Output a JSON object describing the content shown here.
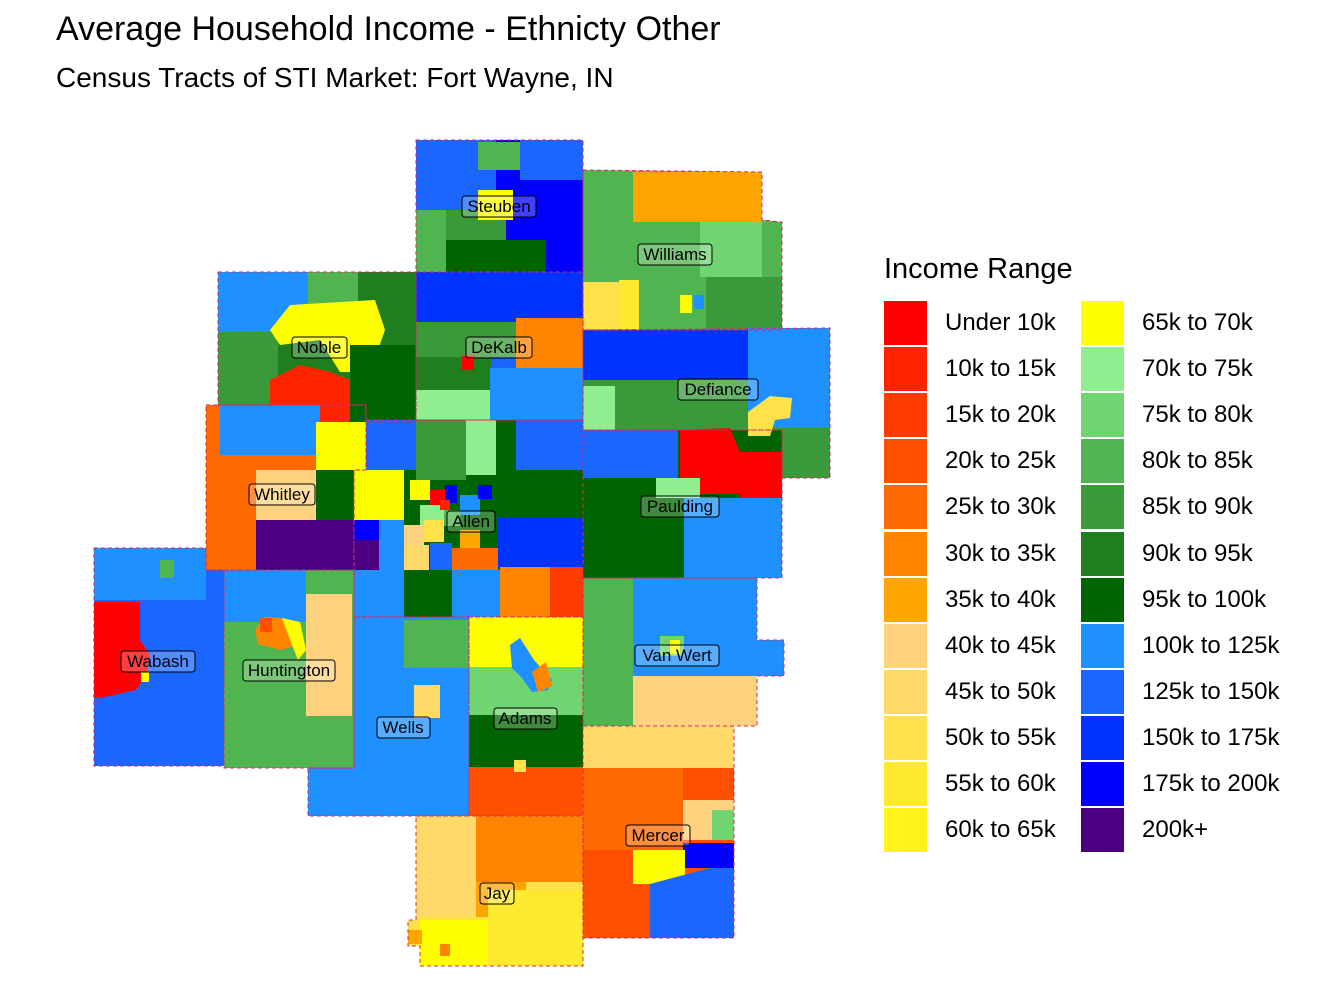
{
  "title": "Average Household Income - Ethnicty Other",
  "subtitle": "Census Tracts of STI Market: Fort Wayne, IN",
  "legend": {
    "title": "Income Range",
    "items": [
      {
        "label": "Under 10k",
        "color": "#FF0000"
      },
      {
        "label": "10k to 15k",
        "color": "#FF2400"
      },
      {
        "label": "15k to 20k",
        "color": "#FF3C00"
      },
      {
        "label": "20k to 25k",
        "color": "#FF5000"
      },
      {
        "label": "25k to 30k",
        "color": "#FF6A00"
      },
      {
        "label": "30k to 35k",
        "color": "#FF8400"
      },
      {
        "label": "35k to 40k",
        "color": "#FFA500"
      },
      {
        "label": "40k to 45k",
        "color": "#FFD27F"
      },
      {
        "label": "45k to 50k",
        "color": "#FFDA6A"
      },
      {
        "label": "50k to 55k",
        "color": "#FFE24A"
      },
      {
        "label": "55k to 60k",
        "color": "#FFEA30"
      },
      {
        "label": "60k to 65k",
        "color": "#FFF31A"
      },
      {
        "label": "65k to 70k",
        "color": "#FFFF00"
      },
      {
        "label": "70k to 75k",
        "color": "#90EE90"
      },
      {
        "label": "75k to 80k",
        "color": "#70D470"
      },
      {
        "label": "80k to 85k",
        "color": "#50B450"
      },
      {
        "label": "85k to 90k",
        "color": "#3A9A3A"
      },
      {
        "label": "90k to 95k",
        "color": "#1F7F1F"
      },
      {
        "label": "95k to 100k",
        "color": "#006400"
      },
      {
        "label": "100k to 125k",
        "color": "#1E90FF"
      },
      {
        "label": "125k to 150k",
        "color": "#1A66FF"
      },
      {
        "label": "150k to 175k",
        "color": "#0033FF"
      },
      {
        "label": "175k to 200k",
        "color": "#0000FF"
      },
      {
        "label": "200k+",
        "color": "#4B0082"
      }
    ]
  },
  "counties": [
    {
      "name": "Steuben",
      "range": "175k to 200k"
    },
    {
      "name": "Williams",
      "range": "80k to 85k"
    },
    {
      "name": "Noble",
      "range": "85k to 90k"
    },
    {
      "name": "DeKalb",
      "range": "150k to 175k"
    },
    {
      "name": "Defiance",
      "range": "85k to 90k"
    },
    {
      "name": "Whitley",
      "range": "25k to 30k"
    },
    {
      "name": "Allen",
      "range": "95k to 100k"
    },
    {
      "name": "Paulding",
      "range": "95k to 100k"
    },
    {
      "name": "Wabash",
      "range": "125k to 150k"
    },
    {
      "name": "Huntington",
      "range": "80k to 85k"
    },
    {
      "name": "Van Wert",
      "range": "100k to 125k"
    },
    {
      "name": "Wells",
      "range": "100k to 125k"
    },
    {
      "name": "Adams",
      "range": "75k to 80k"
    },
    {
      "name": "Mercer",
      "range": "20k to 25k"
    },
    {
      "name": "Jay",
      "range": "50k to 55k"
    }
  ]
}
